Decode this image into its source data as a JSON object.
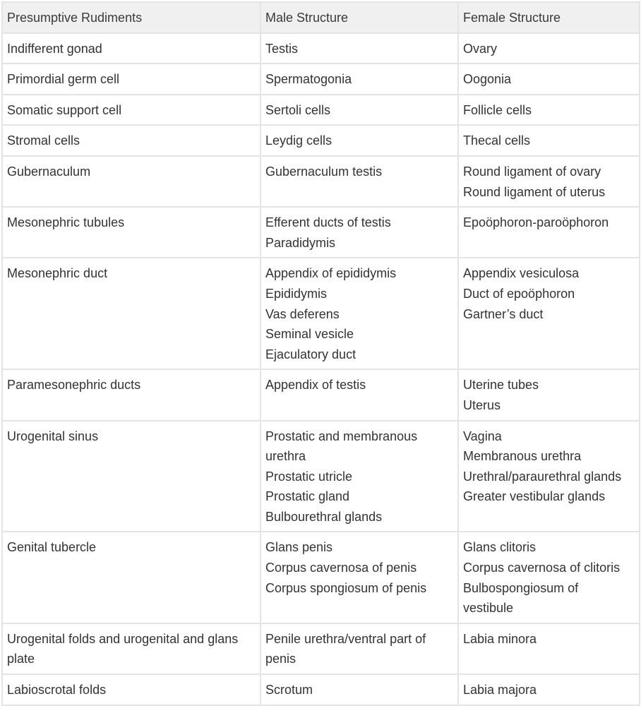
{
  "table": {
    "headers": [
      "Presumptive Rudiments",
      "Male Structure",
      "Female Structure"
    ],
    "rows": [
      {
        "rudiment": [
          "Indifferent gonad"
        ],
        "male": [
          "Testis"
        ],
        "female": [
          "Ovary"
        ]
      },
      {
        "rudiment": [
          "Primordial germ cell"
        ],
        "male": [
          "Spermatogonia"
        ],
        "female": [
          "Oogonia"
        ]
      },
      {
        "rudiment": [
          "Somatic support cell"
        ],
        "male": [
          "Sertoli cells"
        ],
        "female": [
          "Follicle cells"
        ]
      },
      {
        "rudiment": [
          "Stromal cells"
        ],
        "male": [
          "Leydig cells"
        ],
        "female": [
          "Thecal cells"
        ]
      },
      {
        "rudiment": [
          "Gubernaculum"
        ],
        "male": [
          "Gubernaculum testis"
        ],
        "female": [
          "Round ligament of ovary",
          "Round ligament of uterus"
        ]
      },
      {
        "rudiment": [
          "Mesonephric tubules"
        ],
        "male": [
          "Efferent ducts of testis",
          "Paradidymis"
        ],
        "female": [
          "Epoöphoron-paroöphoron"
        ]
      },
      {
        "rudiment": [
          "Mesonephric duct"
        ],
        "male": [
          "Appendix of epididymis",
          "Epididymis",
          "Vas deferens",
          "Seminal vesicle",
          "Ejaculatory duct"
        ],
        "female": [
          "Appendix vesiculosa",
          "Duct of epoöphoron",
          "Gartner’s duct"
        ]
      },
      {
        "rudiment": [
          "Paramesonephric ducts"
        ],
        "male": [
          "Appendix of testis"
        ],
        "female": [
          "Uterine tubes",
          "Uterus"
        ]
      },
      {
        "rudiment": [
          "Urogenital sinus"
        ],
        "male": [
          "Prostatic and membranous",
          "urethra",
          "Prostatic utricle",
          "Prostatic gland",
          "Bulbourethral glands"
        ],
        "female": [
          "Vagina",
          "Membranous urethra",
          "Urethral/paraurethral glands",
          "Greater vestibular glands"
        ]
      },
      {
        "rudiment": [
          "Genital tubercle"
        ],
        "male": [
          "Glans penis",
          "Corpus cavernosa of penis",
          "Corpus spongiosum of penis"
        ],
        "female": [
          "Glans clitoris",
          "Corpus cavernosa of clitoris",
          "Bulbospongiosum of",
          "vestibule"
        ]
      },
      {
        "rudiment": [
          "Urogenital folds and urogenital and glans",
          "plate"
        ],
        "male": [
          "Penile urethra/ventral part of",
          "penis"
        ],
        "female": [
          "Labia minora"
        ]
      },
      {
        "rudiment": [
          "Labioscrotal folds"
        ],
        "male": [
          "Scrotum"
        ],
        "female": [
          "Labia majora"
        ]
      }
    ]
  }
}
